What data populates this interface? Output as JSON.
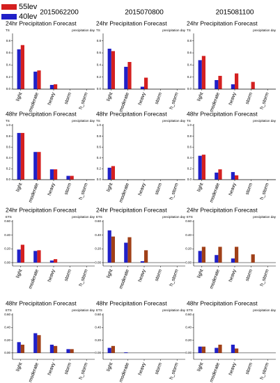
{
  "legend": [
    {
      "name": "55lev",
      "color": "#d42020"
    },
    {
      "name": "40lev",
      "color": "#2020c8"
    }
  ],
  "columns": [
    "2015062200",
    "2015070800",
    "2015081100"
  ],
  "chart_data": [
    {
      "type": "bar",
      "title": "24hr Precipitation Forecast",
      "ylabel": "TS",
      "subtitle": "precipitation day",
      "categories": [
        "light",
        "moderate",
        "heavy",
        "storm",
        "h_storm"
      ],
      "ylim": [
        0,
        0.9
      ],
      "yticks": [
        {
          "value": 0,
          "label": "0.0"
        },
        {
          "value": 0.2,
          "label": "0.2"
        },
        {
          "value": 0.4,
          "label": "0.4"
        },
        {
          "value": 0.6,
          "label": "0.6"
        },
        {
          "value": 0.8,
          "label": "0.8"
        }
      ],
      "series": [
        {
          "color": "#2020c8",
          "values": [
            0.66,
            0.29,
            0.07,
            0,
            0
          ]
        },
        {
          "color": "#d42020",
          "values": [
            0.73,
            0.31,
            0.08,
            0,
            0
          ]
        }
      ]
    },
    {
      "type": "bar",
      "title": "24hr Precipitation Forecast",
      "ylabel": "TS",
      "subtitle": "precipitation day",
      "categories": [
        "light",
        "moderate",
        "heavy",
        "storm",
        "h_storm"
      ],
      "ylim": [
        0,
        0.9
      ],
      "yticks": [
        {
          "value": 0,
          "label": "0.0"
        },
        {
          "value": 0.2,
          "label": "0.2"
        },
        {
          "value": 0.4,
          "label": "0.4"
        },
        {
          "value": 0.6,
          "label": "0.6"
        },
        {
          "value": 0.8,
          "label": "0.8"
        }
      ],
      "series": [
        {
          "color": "#2020c8",
          "values": [
            0.67,
            0.37,
            0.04,
            0,
            0
          ]
        },
        {
          "color": "#d42020",
          "values": [
            0.63,
            0.45,
            0.19,
            0,
            0
          ]
        }
      ]
    },
    {
      "type": "bar",
      "title": "24hr Precipitation Forecast",
      "ylabel": "TS",
      "subtitle": "precipitation day",
      "categories": [
        "light",
        "moderate",
        "heavy",
        "storm",
        "h_storm"
      ],
      "ylim": [
        0,
        0.9
      ],
      "yticks": [
        {
          "value": 0,
          "label": "0.0"
        },
        {
          "value": 0.2,
          "label": "0.2"
        },
        {
          "value": 0.4,
          "label": "0.4"
        },
        {
          "value": 0.6,
          "label": "0.6"
        },
        {
          "value": 0.8,
          "label": "0.8"
        }
      ],
      "series": [
        {
          "color": "#2020c8",
          "values": [
            0.48,
            0.15,
            0.08,
            0,
            0
          ]
        },
        {
          "color": "#d42020",
          "values": [
            0.55,
            0.22,
            0.26,
            0.12,
            0
          ]
        }
      ]
    },
    {
      "type": "bar",
      "title": "48hr Precipitation Forecast",
      "ylabel": "TS",
      "subtitle": "precipitation day",
      "categories": [
        "light",
        "moderate",
        "heavy",
        "storm",
        "h_storm"
      ],
      "ylim": [
        0,
        1.0
      ],
      "yticks": [
        {
          "value": 0,
          "label": "0.0"
        },
        {
          "value": 0.2,
          "label": "0.2"
        },
        {
          "value": 0.4,
          "label": "0.4"
        },
        {
          "value": 0.6,
          "label": "0.6"
        },
        {
          "value": 0.8,
          "label": "0.8"
        },
        {
          "value": 1,
          "label": "1.0"
        }
      ],
      "series": [
        {
          "color": "#2020c8",
          "values": [
            0.86,
            0.51,
            0.19,
            0.07,
            0
          ]
        },
        {
          "color": "#d42020",
          "values": [
            0.86,
            0.51,
            0.19,
            0.07,
            0
          ]
        }
      ]
    },
    {
      "type": "bar",
      "title": "48hr Precipitation Forecast",
      "ylabel": "TS",
      "subtitle": "precipitation day",
      "categories": [
        "light",
        "moderate",
        "heavy",
        "storm",
        "h_storm"
      ],
      "ylim": [
        0,
        1.0
      ],
      "yticks": [
        {
          "value": 0,
          "label": "0.0"
        },
        {
          "value": 0.2,
          "label": "0.2"
        },
        {
          "value": 0.4,
          "label": "0.4"
        },
        {
          "value": 0.6,
          "label": "0.6"
        },
        {
          "value": 0.8,
          "label": "0.8"
        },
        {
          "value": 1,
          "label": "1.0"
        }
      ],
      "series": [
        {
          "color": "#2020c8",
          "values": [
            0.22,
            0,
            0,
            0,
            0
          ]
        },
        {
          "color": "#d42020",
          "values": [
            0.25,
            0,
            0,
            0,
            0
          ]
        }
      ]
    },
    {
      "type": "bar",
      "title": "48hr Precipitation Forecast",
      "ylabel": "TS",
      "subtitle": "precipitation day",
      "categories": [
        "light",
        "moderate",
        "heavy",
        "storm",
        "h_storm"
      ],
      "ylim": [
        0,
        1.0
      ],
      "yticks": [
        {
          "value": 0,
          "label": "0.0"
        },
        {
          "value": 0.2,
          "label": "0.2"
        },
        {
          "value": 0.4,
          "label": "0.4"
        },
        {
          "value": 0.6,
          "label": "0.6"
        },
        {
          "value": 0.8,
          "label": "0.8"
        },
        {
          "value": 1,
          "label": "1.0"
        }
      ],
      "series": [
        {
          "color": "#2020c8",
          "values": [
            0.44,
            0.13,
            0.14,
            0,
            0
          ]
        },
        {
          "color": "#d42020",
          "values": [
            0.46,
            0.19,
            0.08,
            0,
            0
          ]
        }
      ]
    },
    {
      "type": "bar",
      "title": "24hr Precipitation Forecast",
      "ylabel": "ETS",
      "subtitle": "precipitation day",
      "categories": [
        "light",
        "moderate",
        "heavy",
        "storm",
        "h_storm"
      ],
      "ylim": [
        -0.05,
        0.6
      ],
      "yticks": [
        {
          "value": 0,
          "label": "0.00"
        },
        {
          "value": 0.2,
          "label": "0.20"
        },
        {
          "value": 0.4,
          "label": "0.40"
        },
        {
          "value": 0.6,
          "label": "0.60"
        }
      ],
      "series": [
        {
          "color": "#2020c8",
          "values": [
            0.19,
            0.17,
            0.03,
            0,
            0
          ]
        },
        {
          "color": "#d42020",
          "values": [
            0.26,
            0.18,
            0.05,
            0,
            0
          ]
        }
      ]
    },
    {
      "type": "bar",
      "title": "24hr Precipitation Forecast",
      "ylabel": "ETS",
      "subtitle": "precipitation day",
      "categories": [
        "light",
        "moderate",
        "heavy",
        "storm",
        "h_storm"
      ],
      "ylim": [
        -0.05,
        0.6
      ],
      "yticks": [
        {
          "value": 0,
          "label": "0.00"
        },
        {
          "value": 0.2,
          "label": "0.20"
        },
        {
          "value": 0.4,
          "label": "0.40"
        },
        {
          "value": 0.6,
          "label": "0.60"
        }
      ],
      "series": [
        {
          "color": "#2020c8",
          "values": [
            0.47,
            0.29,
            0.02,
            0,
            0
          ]
        },
        {
          "color": "#a04018",
          "values": [
            0.38,
            0.37,
            0.18,
            0,
            0
          ]
        }
      ]
    },
    {
      "type": "bar",
      "title": "24hr Precipitation Forecast",
      "ylabel": "ETS",
      "subtitle": "precipitation day",
      "categories": [
        "light",
        "moderate",
        "heavy",
        "storm",
        "h_storm"
      ],
      "ylim": [
        -0.05,
        0.6
      ],
      "yticks": [
        {
          "value": 0,
          "label": "0.00"
        },
        {
          "value": 0.2,
          "label": "0.20"
        },
        {
          "value": 0.4,
          "label": "0.40"
        },
        {
          "value": 0.6,
          "label": "0.60"
        }
      ],
      "series": [
        {
          "color": "#2020c8",
          "values": [
            0.17,
            0.11,
            0.06,
            0,
            0
          ]
        },
        {
          "color": "#a04018",
          "values": [
            0.23,
            0.23,
            0.23,
            0.12,
            0
          ]
        }
      ]
    },
    {
      "type": "bar",
      "title": "48hr Precipitation Forecast",
      "ylabel": "ETS",
      "subtitle": "precipitation day",
      "categories": [
        "light",
        "moderate",
        "heavy",
        "storm",
        "h_storm"
      ],
      "ylim": [
        -0.1,
        0.6
      ],
      "yticks": [
        {
          "value": 0,
          "label": "0.00"
        },
        {
          "value": 0.2,
          "label": "0.20"
        },
        {
          "value": 0.4,
          "label": "0.40"
        },
        {
          "value": 0.6,
          "label": "0.60"
        }
      ],
      "series": [
        {
          "color": "#2020c8",
          "values": [
            0.17,
            0.31,
            0.13,
            0.06,
            0
          ]
        },
        {
          "color": "#a04018",
          "values": [
            0.13,
            0.28,
            0.11,
            0.06,
            0
          ]
        }
      ]
    },
    {
      "type": "bar",
      "title": "48hr Precipitation Forecast",
      "ylabel": "ETS",
      "subtitle": "precipitation day",
      "categories": [
        "light",
        "moderate",
        "heavy",
        "storm",
        "h_storm"
      ],
      "ylim": [
        -0.1,
        0.6
      ],
      "yticks": [
        {
          "value": 0,
          "label": "0.00"
        },
        {
          "value": 0.2,
          "label": "0.20"
        },
        {
          "value": 0.4,
          "label": "0.40"
        },
        {
          "value": 0.6,
          "label": "0.60"
        }
      ],
      "series": [
        {
          "color": "#2020c8",
          "values": [
            0.08,
            0.01,
            0,
            0,
            0
          ]
        },
        {
          "color": "#a04018",
          "values": [
            0.11,
            0,
            0,
            0,
            0
          ]
        }
      ]
    },
    {
      "type": "bar",
      "title": "48hr Precipitation Forecast",
      "ylabel": "ETS",
      "subtitle": "precipitation day",
      "categories": [
        "light",
        "moderate",
        "heavy",
        "storm",
        "h_storm"
      ],
      "ylim": [
        -0.1,
        0.6
      ],
      "yticks": [
        {
          "value": 0,
          "label": "0.00"
        },
        {
          "value": 0.2,
          "label": "0.20"
        },
        {
          "value": 0.4,
          "label": "0.40"
        },
        {
          "value": 0.6,
          "label": "0.60"
        }
      ],
      "series": [
        {
          "color": "#2020c8",
          "values": [
            0.1,
            0.08,
            0.13,
            0,
            0
          ]
        },
        {
          "color": "#a04018",
          "values": [
            0.1,
            0.13,
            0.07,
            0,
            0
          ]
        }
      ]
    }
  ]
}
